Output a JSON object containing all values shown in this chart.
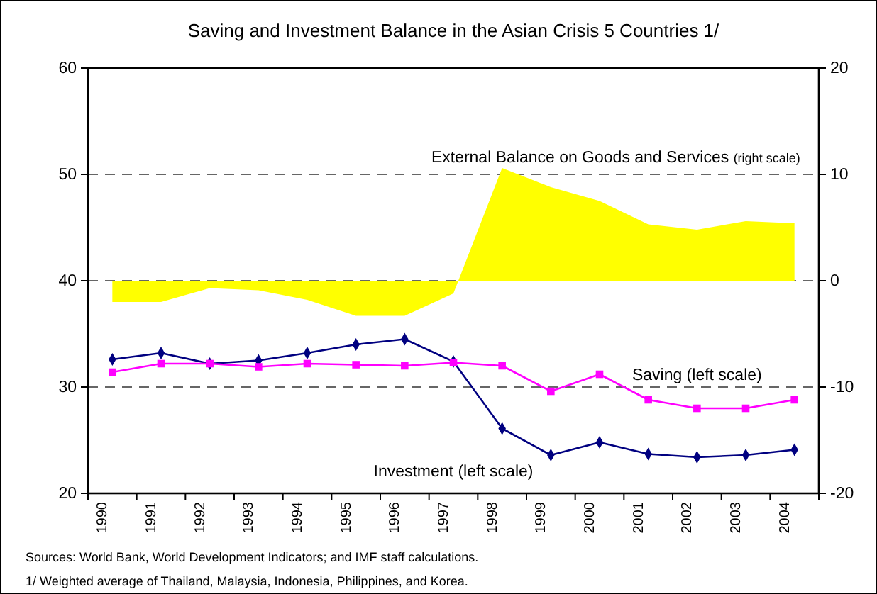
{
  "chart_data": {
    "type": "line",
    "title": "Saving and Investment Balance in the Asian Crisis 5 Countries 1/",
    "categories": [
      "1990",
      "1991",
      "1992",
      "1993",
      "1994",
      "1995",
      "1996",
      "1997",
      "1998",
      "1999",
      "2000",
      "2001",
      "2002",
      "2003",
      "2004"
    ],
    "series": [
      {
        "name": "External Balance on Goods and Services (right scale)",
        "type": "area",
        "axis": "y2",
        "color": "#ffff00",
        "values": [
          -2.0,
          -2.0,
          -0.7,
          -0.9,
          -1.8,
          -3.3,
          -3.3,
          -1.2,
          10.6,
          8.8,
          7.5,
          5.3,
          4.8,
          5.6,
          5.4
        ]
      },
      {
        "name": "Investment  (left scale)",
        "type": "line",
        "color": "#000080",
        "marker": "diamond",
        "values": [
          32.6,
          33.2,
          32.2,
          32.5,
          33.2,
          34.0,
          34.5,
          32.4,
          26.1,
          23.6,
          24.8,
          23.7,
          23.4,
          23.6,
          24.1
        ]
      },
      {
        "name": "Saving (left scale)",
        "type": "line",
        "color": "#ff00ff",
        "marker": "square",
        "values": [
          31.4,
          32.2,
          32.2,
          31.9,
          32.2,
          32.1,
          32.0,
          32.3,
          32.0,
          29.6,
          31.2,
          28.8,
          28.0,
          28.0,
          28.8
        ]
      }
    ],
    "ylim": [
      20,
      60
    ],
    "yticks": [
      20,
      30,
      40,
      50,
      60
    ],
    "y2lim": [
      -20,
      20
    ],
    "y2ticks": [
      -20,
      -10,
      0,
      10,
      20
    ],
    "grid": "y",
    "line_style": "solid",
    "legend": false,
    "annotations": [
      "Sources: World Bank, World Development Indicators; and IMF staff calculations.",
      "1/  Weighted average of Thailand, Malaysia, Indonesia, Philippines, and Korea."
    ]
  }
}
